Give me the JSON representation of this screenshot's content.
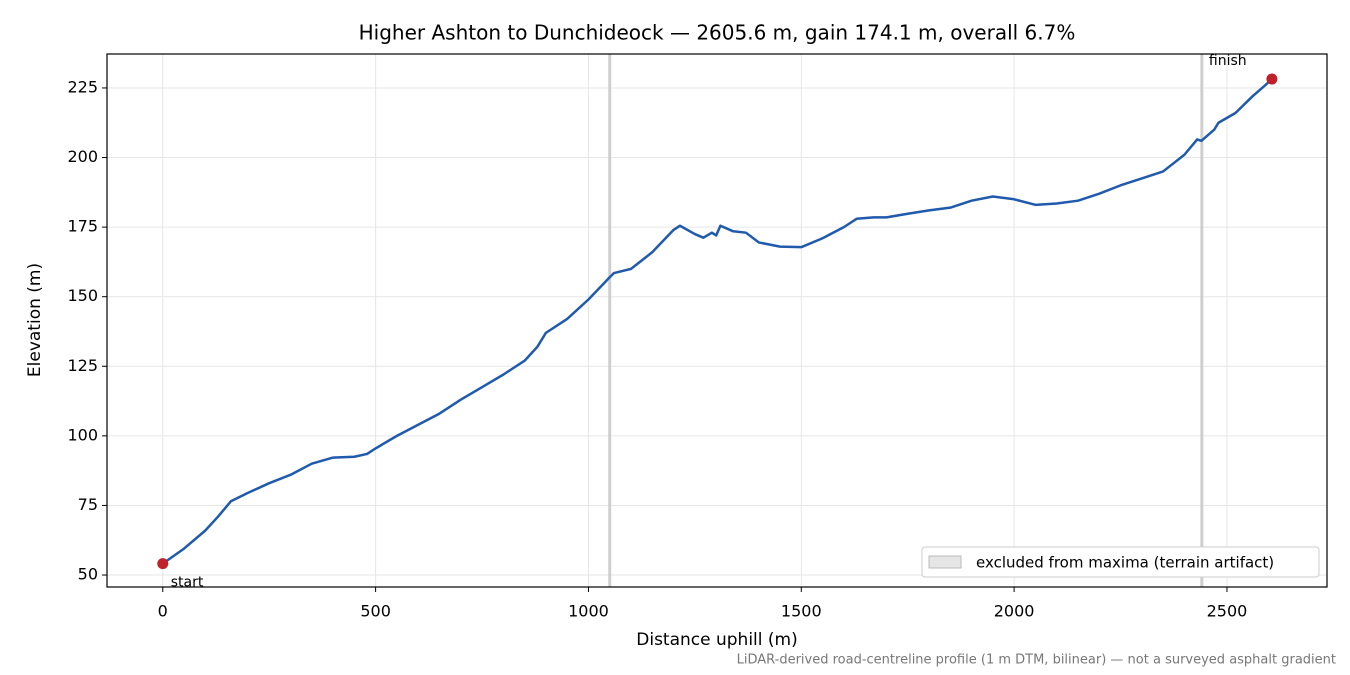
{
  "chart_data": {
    "type": "line",
    "title": "Higher Ashton to Dunchideock — 2605.6 m, gain 174.1 m, overall 6.7%",
    "xlabel": "Distance uphill (m)",
    "ylabel": "Elevation (m)",
    "note": "LiDAR-derived road-centreline profile (1 m DTM, bilinear) — not a surveyed asphalt gradient",
    "x": [
      0,
      50,
      100,
      130,
      160,
      200,
      250,
      300,
      350,
      400,
      450,
      480,
      500,
      550,
      600,
      650,
      700,
      750,
      800,
      850,
      880,
      900,
      950,
      1000,
      1050,
      1060,
      1100,
      1150,
      1200,
      1215,
      1250,
      1270,
      1290,
      1300,
      1310,
      1340,
      1370,
      1400,
      1450,
      1500,
      1550,
      1600,
      1630,
      1670,
      1700,
      1750,
      1800,
      1850,
      1900,
      1950,
      2000,
      2050,
      2100,
      2150,
      2200,
      2250,
      2300,
      2350,
      2400,
      2430,
      2440,
      2470,
      2480,
      2520,
      2560,
      2590,
      2605.6
    ],
    "values": [
      54.1,
      59.5,
      66,
      71,
      76.5,
      79.5,
      83,
      86,
      90,
      92.2,
      92.5,
      93.5,
      95.5,
      100,
      104,
      108,
      113,
      117.5,
      122,
      127,
      132,
      137,
      142,
      149,
      157,
      158.5,
      160,
      166,
      174,
      175.5,
      172.5,
      171.2,
      173,
      172,
      175.5,
      173.5,
      173,
      169.5,
      168,
      167.8,
      171,
      175,
      178,
      178.5,
      178.5,
      179.8,
      181,
      182,
      184.5,
      186,
      185,
      183,
      183.5,
      184.5,
      187,
      190,
      192.5,
      195,
      201,
      206.5,
      206,
      210,
      212.5,
      216,
      222,
      226,
      228.2
    ],
    "color": "#1f5aad",
    "marker_color": "#c0202a",
    "start_label": "start",
    "finish_label": "finish",
    "excluded": {
      "label": "excluded from maxima (terrain artifact)",
      "x": [
        1050,
        2441
      ],
      "color": "#cfcfcf"
    },
    "xlim": [
      -131,
      2735
    ],
    "ylim": [
      45.7,
      237.2
    ],
    "xticks": [
      0,
      500,
      1000,
      1500,
      2000,
      2500
    ],
    "yticks": [
      50,
      75,
      100,
      125,
      150,
      175,
      200,
      225
    ],
    "grid": true,
    "legend": "lower right"
  }
}
